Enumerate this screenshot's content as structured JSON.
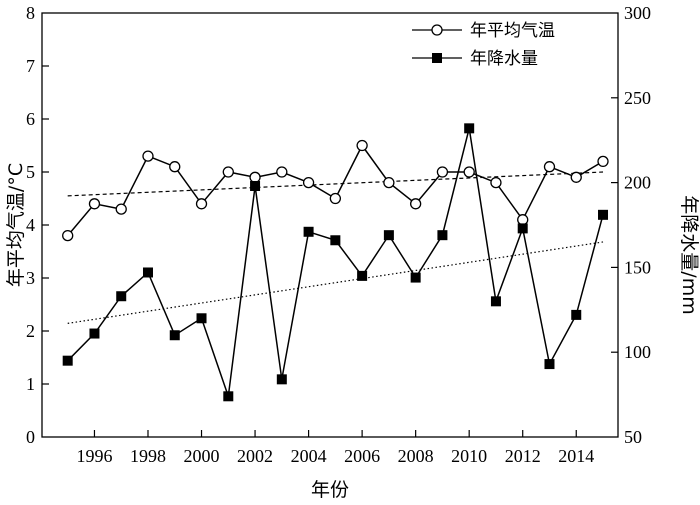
{
  "chart_data": {
    "type": "line",
    "x": [
      1995,
      1996,
      1997,
      1998,
      1999,
      2000,
      2001,
      2002,
      2003,
      2004,
      2005,
      2006,
      2007,
      2008,
      2009,
      2010,
      2011,
      2012,
      2013,
      2014,
      2015
    ],
    "x_tick_labels": [
      "1996",
      "1998",
      "2000",
      "2002",
      "2004",
      "2006",
      "2008",
      "2010",
      "2012",
      "2014"
    ],
    "xlabel": "年份",
    "ylabel_left": "年平均气温/°C",
    "ylabel_right": "年降水量/mm",
    "ylim_left": [
      0,
      8
    ],
    "ylim_right": [
      50,
      300
    ],
    "y_ticks_left": [
      "0",
      "1",
      "2",
      "3",
      "4",
      "5",
      "6",
      "7",
      "8"
    ],
    "y_ticks_right": [
      "50",
      "100",
      "150",
      "200",
      "250",
      "300"
    ],
    "grid": false,
    "legend_position": "top-right",
    "series": [
      {
        "name": "年平均气温",
        "axis": "left",
        "marker": "open-circle",
        "values": [
          3.8,
          4.4,
          4.3,
          5.3,
          5.1,
          4.4,
          5.0,
          4.9,
          5.0,
          4.8,
          4.5,
          5.5,
          4.8,
          4.4,
          5.0,
          5.0,
          4.8,
          4.1,
          5.1,
          4.9,
          5.2
        ],
        "trend": [
          4.55,
          5.0
        ]
      },
      {
        "name": "年降水量",
        "axis": "right",
        "marker": "filled-square",
        "values": [
          95,
          111,
          133,
          147,
          110,
          120,
          74,
          198,
          84,
          171,
          166,
          145,
          169,
          144,
          169,
          232,
          130,
          173,
          93,
          122,
          181
        ],
        "trend": [
          117,
          165
        ]
      }
    ]
  }
}
